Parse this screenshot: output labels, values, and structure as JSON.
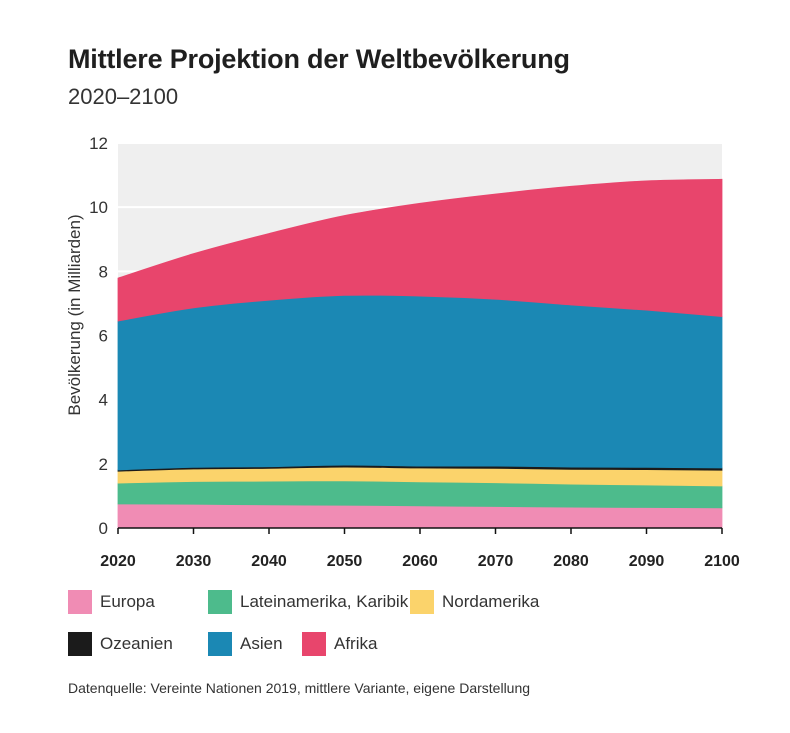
{
  "title": "Mittlere Projektion der Weltbevölkerung",
  "subtitle": "2020–2100",
  "source": "Datenquelle: Vereinte Nationen 2019, mittlere Variante, eigene Darstellung",
  "chart_data": {
    "type": "area",
    "stacked": true,
    "x": [
      2020,
      2030,
      2040,
      2050,
      2060,
      2070,
      2080,
      2090,
      2100
    ],
    "xticks": [
      "2020",
      "2030",
      "2040",
      "2050",
      "2060",
      "2070",
      "2080",
      "2090",
      "2100"
    ],
    "ylabel": "Bevölkerung (in Milliarden)",
    "ylim": [
      0,
      12
    ],
    "yticks": [
      "0",
      "2",
      "4",
      "6",
      "8",
      "10",
      "12"
    ],
    "grid": true,
    "legend_position": "bottom",
    "series": [
      {
        "name": "Europa",
        "color": "#f08cb4",
        "values": [
          0.75,
          0.74,
          0.72,
          0.71,
          0.69,
          0.67,
          0.65,
          0.64,
          0.63
        ]
      },
      {
        "name": "Lateinamerika, Karibik",
        "color": "#4dbb8c",
        "values": [
          0.65,
          0.71,
          0.74,
          0.76,
          0.75,
          0.74,
          0.72,
          0.7,
          0.68
        ]
      },
      {
        "name": "Nordamerika",
        "color": "#fbd36b",
        "values": [
          0.37,
          0.39,
          0.4,
          0.43,
          0.43,
          0.45,
          0.46,
          0.48,
          0.49
        ]
      },
      {
        "name": "Ozeanien",
        "color": "#1b1b1b",
        "values": [
          0.04,
          0.05,
          0.05,
          0.06,
          0.06,
          0.07,
          0.07,
          0.07,
          0.07
        ]
      },
      {
        "name": "Asien",
        "color": "#1b88b4",
        "values": [
          4.64,
          4.97,
          5.19,
          5.29,
          5.3,
          5.2,
          5.05,
          4.9,
          4.72
        ]
      },
      {
        "name": "Afrika",
        "color": "#e8456c",
        "values": [
          1.34,
          1.69,
          2.08,
          2.49,
          2.89,
          3.28,
          3.7,
          4.03,
          4.28
        ]
      }
    ]
  }
}
